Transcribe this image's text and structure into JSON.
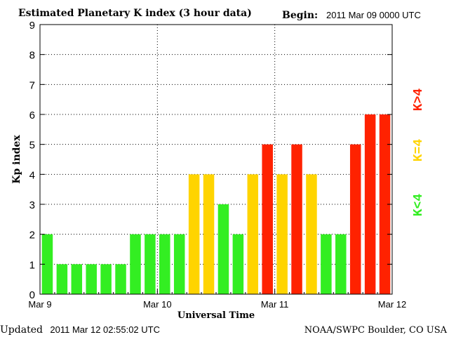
{
  "header": {
    "title": "Estimated Planetary K index (3 hour data)",
    "begin_label": "Begin:",
    "begin_value": "2011 Mar 09 0000 UTC"
  },
  "footer": {
    "updated_label": "Updated",
    "updated_value": "2011 Mar 12 02:55:02 UTC",
    "credit": "NOAA/SWPC Boulder, CO USA"
  },
  "chart_data": {
    "type": "bar",
    "title": "Estimated Planetary K index (3 hour data)",
    "xlabel": "Universal Time",
    "ylabel": "Kp index",
    "ylim": [
      0,
      9
    ],
    "yticks": [
      0,
      1,
      2,
      3,
      4,
      5,
      6,
      7,
      8,
      9
    ],
    "xticks": [
      "Mar 9",
      "Mar 10",
      "Mar 11",
      "Mar 12"
    ],
    "grid": true,
    "values": [
      2,
      1,
      1,
      1,
      1,
      1,
      2,
      2,
      2,
      2,
      4,
      4,
      3,
      2,
      4,
      5,
      4,
      5,
      4,
      2,
      2,
      5,
      6,
      6
    ],
    "legend": [
      {
        "label": "K<4",
        "color": "#33ee22"
      },
      {
        "label": "K=4",
        "color": "#ffd400"
      },
      {
        "label": "K>4",
        "color": "#ff2200"
      }
    ],
    "colors": {
      "low": "#33ee22",
      "equal": "#ffd400",
      "high": "#ff2200"
    }
  }
}
